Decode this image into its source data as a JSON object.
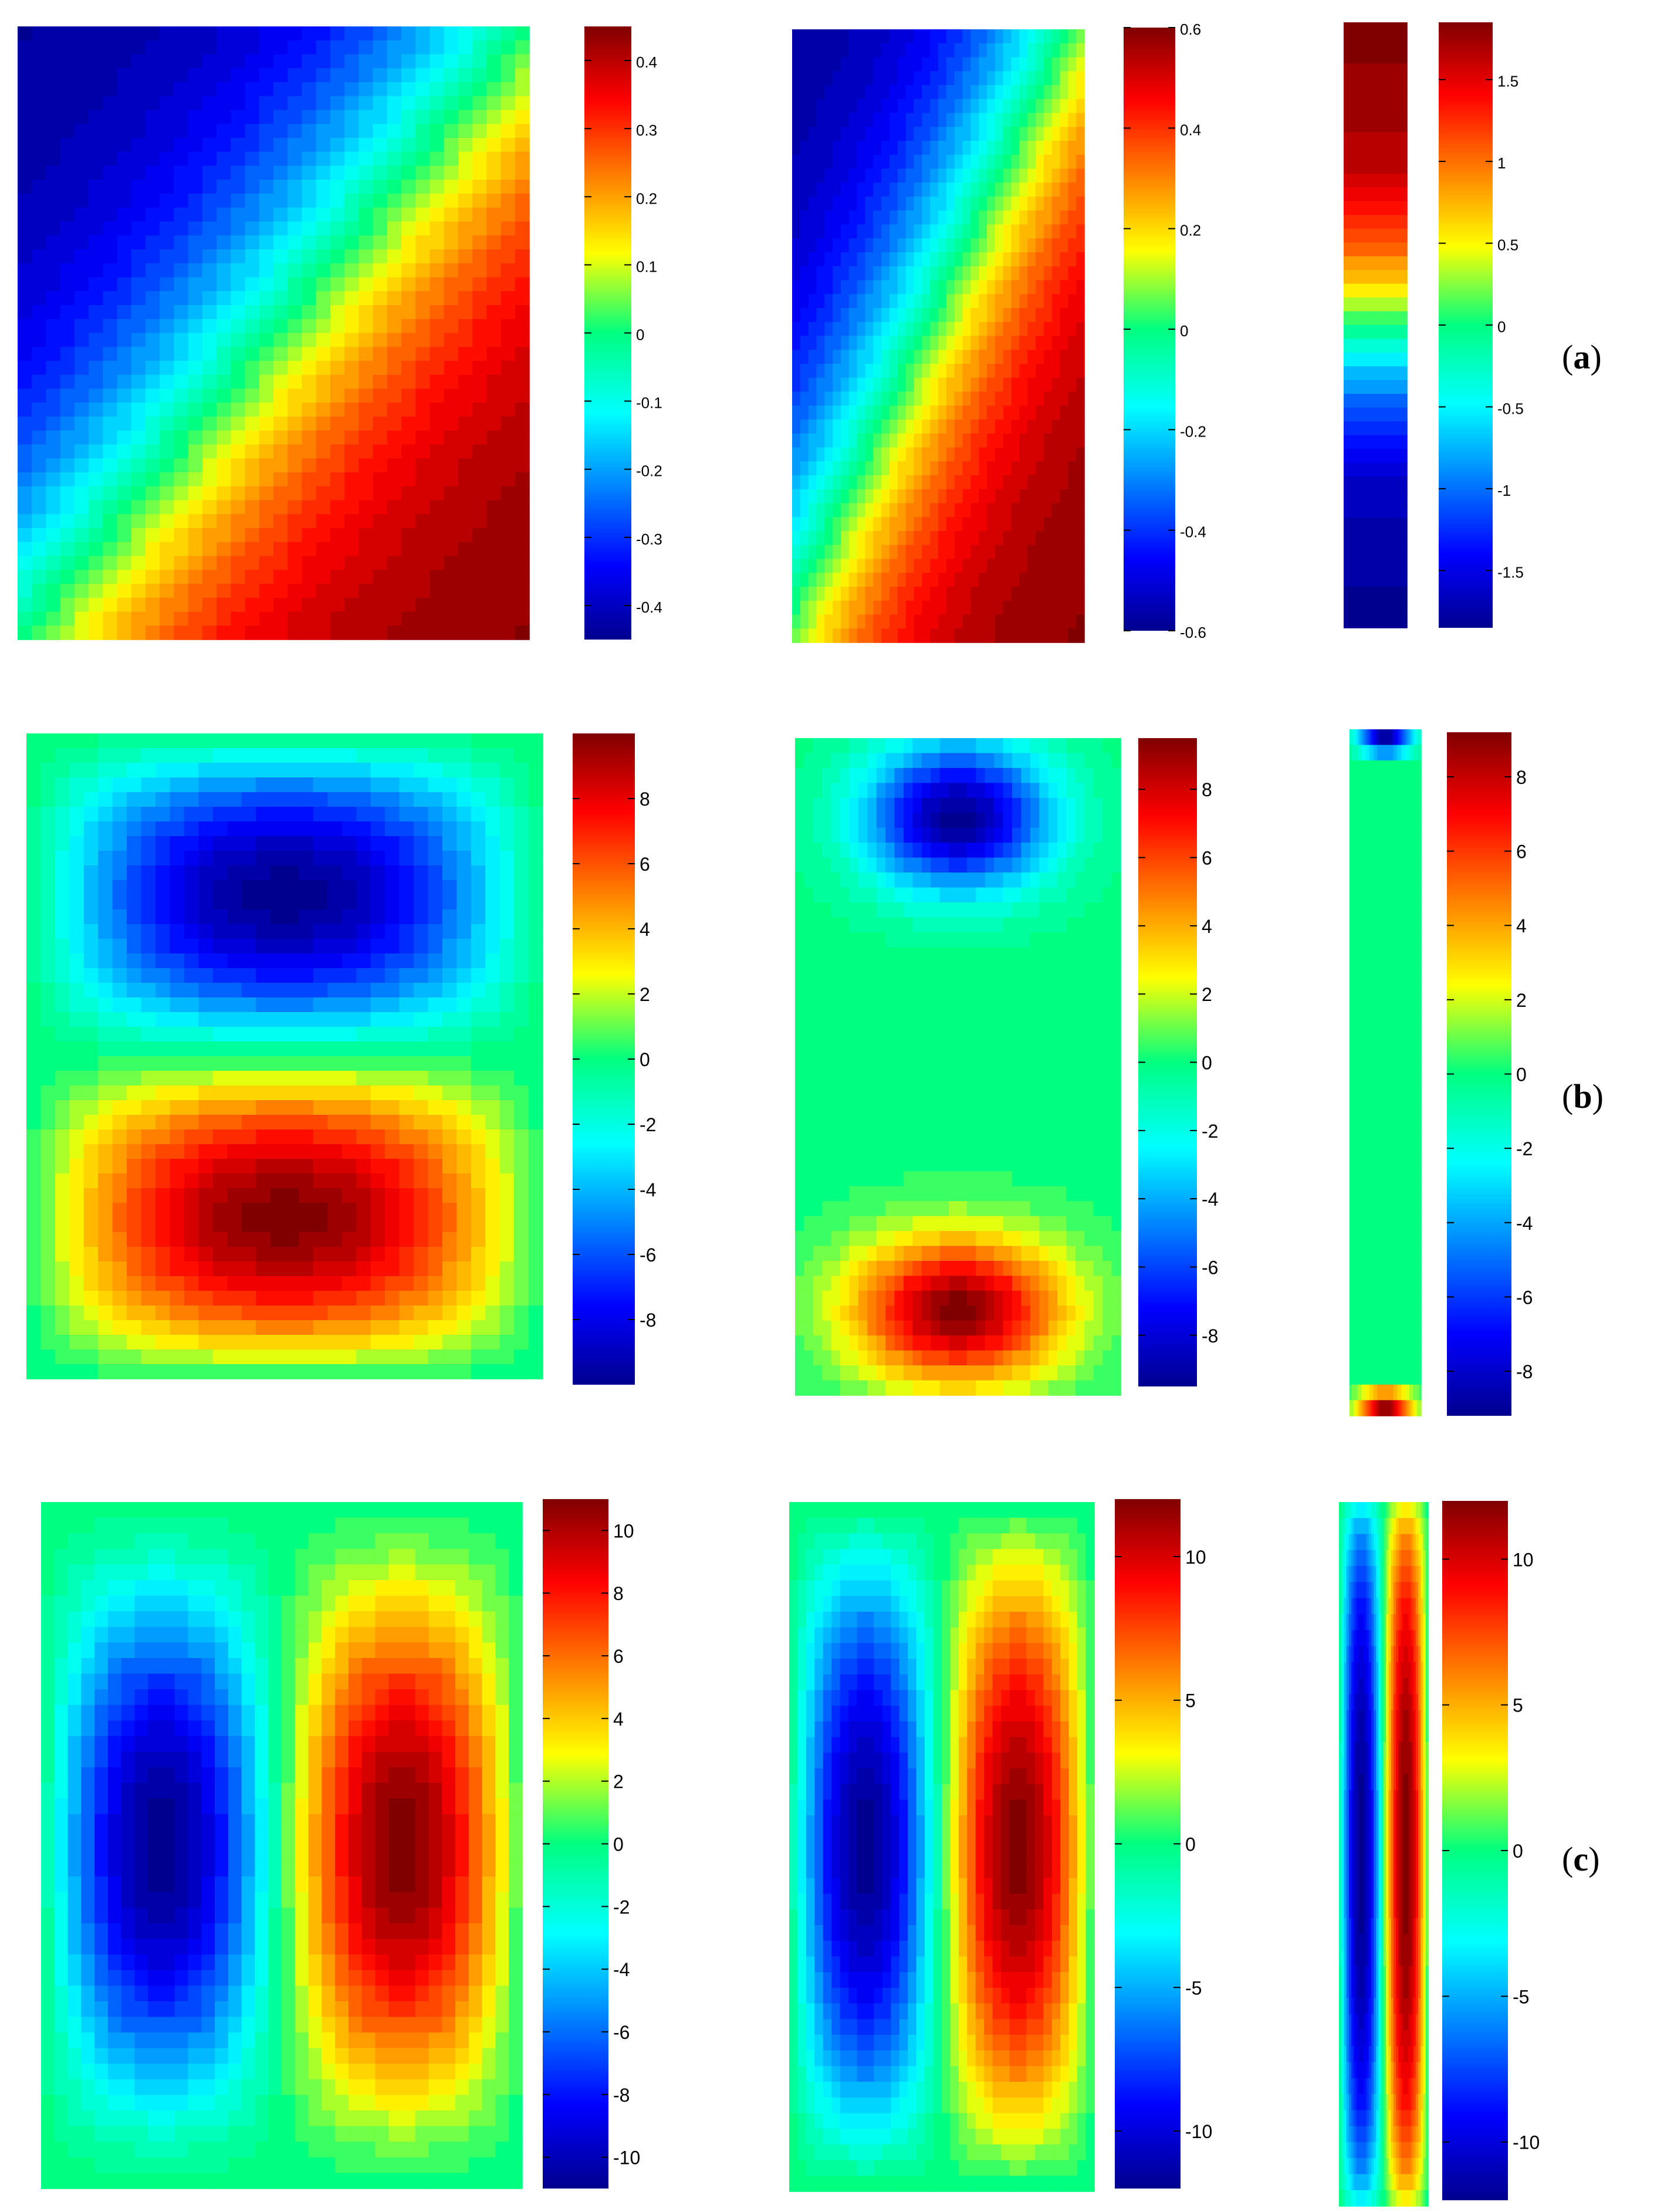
{
  "figure": {
    "row_labels": [
      "(a)",
      "(b)",
      "(c)"
    ],
    "row_label_parts": [
      {
        "open": "(",
        "letter": "a",
        "close": ")"
      },
      {
        "open": "(",
        "letter": "b",
        "close": ")"
      },
      {
        "open": "(",
        "letter": "c",
        "close": ")"
      }
    ],
    "colormap": "jet",
    "colors": {
      "jet": [
        "#00008f",
        "#0000ff",
        "#00ffff",
        "#00ff80",
        "#ffff00",
        "#ff0000",
        "#800000"
      ],
      "background": "#ffffff",
      "text": "#000000"
    }
  },
  "chart_data": [
    {
      "type": "heatmap",
      "row": "a",
      "column": 1,
      "pattern": "s-shaped increasing field, minimum lower-left, maximum upper-right",
      "aspect_ratio": "≈0.84 (width/height)",
      "colorbar": {
        "min": -0.45,
        "max": 0.45,
        "ticks": [
          "0.4",
          "0.3",
          "0.2",
          "0.1",
          "0",
          "-0.1",
          "-0.2",
          "-0.3",
          "-0.4"
        ],
        "tick_values": [
          0.4,
          0.3,
          0.2,
          0.1,
          0,
          -0.1,
          -0.2,
          -0.3,
          -0.4
        ]
      },
      "extremes": {
        "min": -0.45,
        "max": 0.45
      }
    },
    {
      "type": "heatmap",
      "row": "a",
      "column": 2,
      "pattern": "s-shaped increasing field, minimum lower-left, maximum upper-right",
      "aspect_ratio": "≈0.47",
      "colorbar": {
        "min": -0.6,
        "max": 0.6,
        "ticks": [
          "0.6",
          "0.4",
          "0.2",
          "0",
          "-0.2",
          "-0.4",
          "-0.6"
        ],
        "tick_values": [
          0.6,
          0.4,
          0.2,
          0,
          -0.2,
          -0.4,
          -0.6
        ]
      },
      "extremes": {
        "min": -0.6,
        "max": 0.6
      }
    },
    {
      "type": "heatmap",
      "row": "a",
      "column": 3,
      "pattern": "vertical gradient, minimum bottom, maximum top",
      "aspect_ratio": "≈0.1",
      "colorbar": {
        "min": -1.85,
        "max": 1.85,
        "ticks": [
          "1.5",
          "1",
          "0.5",
          "0",
          "-0.5",
          "-1",
          "-1.5"
        ],
        "tick_values": [
          1.5,
          1,
          0.5,
          0,
          -0.5,
          -1,
          -1.5
        ]
      },
      "extremes": {
        "min": -1.85,
        "max": 1.85
      }
    },
    {
      "type": "heatmap",
      "row": "b",
      "column": 1,
      "pattern": "two stacked cells, negative upper cell, positive lower cell",
      "aspect_ratio": "≈0.8",
      "colorbar": {
        "min": -10,
        "max": 10,
        "ticks": [
          "8",
          "6",
          "4",
          "2",
          "0",
          "-2",
          "-4",
          "-6",
          "-8"
        ],
        "tick_values": [
          8,
          6,
          4,
          2,
          0,
          -2,
          -4,
          -6,
          -8
        ]
      },
      "extremes": {
        "min": -9.5,
        "max": 9.5
      }
    },
    {
      "type": "heatmap",
      "row": "b",
      "column": 2,
      "pattern": "two cells near top and bottom walls, negative top, positive bottom",
      "aspect_ratio": "≈0.49",
      "colorbar": {
        "min": -9.5,
        "max": 9.5,
        "ticks": [
          "8",
          "6",
          "4",
          "2",
          "0",
          "-2",
          "-4",
          "-6",
          "-8"
        ],
        "tick_values": [
          8,
          6,
          4,
          2,
          0,
          -2,
          -4,
          -6,
          -8
        ]
      },
      "extremes": {
        "min": -9,
        "max": 9
      }
    },
    {
      "type": "heatmap",
      "row": "b",
      "column": 3,
      "pattern": "small cells at the ends, negative top, positive bottom",
      "aspect_ratio": "≈0.1",
      "colorbar": {
        "min": -9.2,
        "max": 9.2,
        "ticks": [
          "8",
          "6",
          "4",
          "2",
          "0",
          "-2",
          "-4",
          "-6",
          "-8"
        ],
        "tick_values": [
          8,
          6,
          4,
          2,
          0,
          -2,
          -4,
          -6,
          -8
        ]
      },
      "extremes": {
        "min": -9,
        "max": 9
      }
    },
    {
      "type": "heatmap",
      "row": "c",
      "column": 1,
      "pattern": "two side-by-side cells, negative left, positive right",
      "aspect_ratio": "≈0.68",
      "colorbar": {
        "min": -11,
        "max": 11,
        "ticks": [
          "10",
          "8",
          "6",
          "4",
          "2",
          "0",
          "-2",
          "-4",
          "-6",
          "-8",
          "-10"
        ],
        "tick_values": [
          10,
          8,
          6,
          4,
          2,
          0,
          -2,
          -4,
          -6,
          -8,
          -10
        ]
      },
      "extremes": {
        "min": -11,
        "max": 11
      }
    },
    {
      "type": "heatmap",
      "row": "c",
      "column": 2,
      "pattern": "two side-by-side cells, negative left, positive right",
      "aspect_ratio": "≈0.44",
      "colorbar": {
        "min": -12,
        "max": 12,
        "ticks": [
          "10",
          "5",
          "0",
          "-5",
          "-10"
        ],
        "tick_values": [
          10,
          5,
          0,
          -5,
          -10
        ]
      },
      "extremes": {
        "min": -12,
        "max": 12
      }
    },
    {
      "type": "heatmap",
      "row": "c",
      "column": 3,
      "pattern": "two thin side-by-side cells, negative left, positive right",
      "aspect_ratio": "≈0.13",
      "colorbar": {
        "min": -12,
        "max": 12,
        "ticks": [
          "10",
          "5",
          "0",
          "-5",
          "-10"
        ],
        "tick_values": [
          10,
          5,
          0,
          -5,
          -10
        ]
      },
      "extremes": {
        "min": -12,
        "max": 12
      }
    }
  ]
}
